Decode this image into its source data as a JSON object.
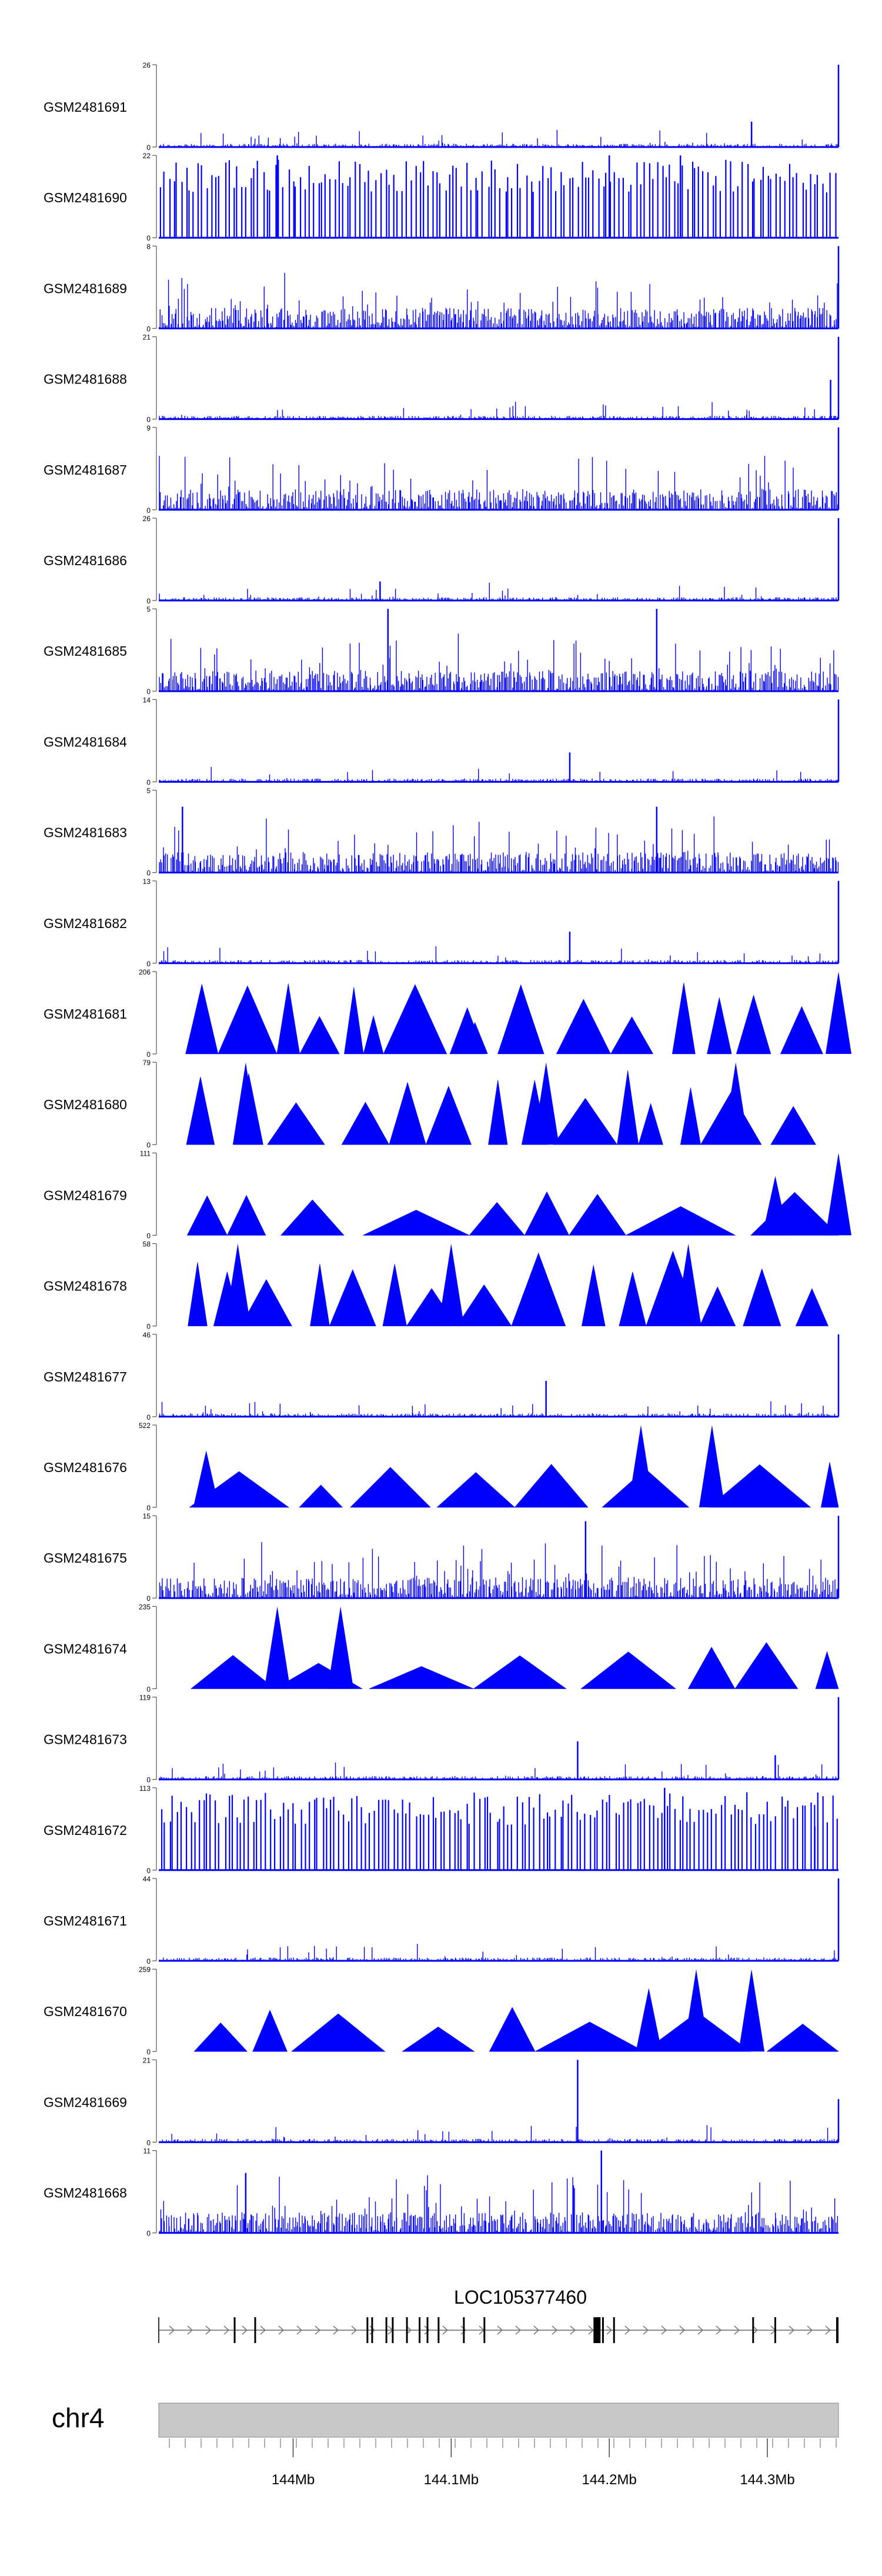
{
  "tracks_color": "#0000ff",
  "chart_data": [
    {
      "type": "area",
      "series": [
        {
          "name": "GSM2481691",
          "ylim": [
            0,
            26
          ],
          "profile": "sparse",
          "seed": 11,
          "peaks": [
            {
              "x": 144.29,
              "y": 8
            },
            {
              "x": 144.345,
              "y": 26
            }
          ]
        }
      ]
    },
    {
      "type": "area",
      "series": [
        {
          "name": "GSM2481690",
          "ylim": [
            0,
            22
          ],
          "profile": "spikes",
          "seed": 12,
          "peaks": [
            {
              "x": 143.99,
              "y": 22
            },
            {
              "x": 144.2,
              "y": 22
            },
            {
              "x": 144.245,
              "y": 22
            }
          ]
        }
      ]
    },
    {
      "type": "area",
      "series": [
        {
          "name": "GSM2481689",
          "ylim": [
            0,
            8
          ],
          "profile": "dense",
          "seed": 13,
          "peaks": [
            {
              "x": 144.345,
              "y": 8
            }
          ]
        }
      ]
    },
    {
      "type": "area",
      "series": [
        {
          "name": "GSM2481688",
          "ylim": [
            0,
            21
          ],
          "profile": "sparse",
          "seed": 14,
          "peaks": [
            {
              "x": 144.345,
              "y": 21
            },
            {
              "x": 144.34,
              "y": 10
            }
          ]
        }
      ]
    },
    {
      "type": "area",
      "series": [
        {
          "name": "GSM2481687",
          "ylim": [
            0,
            9
          ],
          "profile": "dense",
          "seed": 15,
          "peaks": [
            {
              "x": 144.345,
              "y": 9
            }
          ]
        }
      ]
    },
    {
      "type": "area",
      "series": [
        {
          "name": "GSM2481686",
          "ylim": [
            0,
            26
          ],
          "profile": "sparse",
          "seed": 16,
          "peaks": [
            {
              "x": 144.345,
              "y": 26
            },
            {
              "x": 144.055,
              "y": 6
            }
          ]
        }
      ]
    },
    {
      "type": "area",
      "series": [
        {
          "name": "GSM2481685",
          "ylim": [
            0,
            5
          ],
          "profile": "dense",
          "seed": 17,
          "peaks": [
            {
              "x": 144.06,
              "y": 5
            },
            {
              "x": 144.23,
              "y": 5
            }
          ]
        }
      ]
    },
    {
      "type": "area",
      "series": [
        {
          "name": "GSM2481684",
          "ylim": [
            0,
            14
          ],
          "profile": "sparse",
          "seed": 18,
          "peaks": [
            {
              "x": 144.345,
              "y": 14
            },
            {
              "x": 144.175,
              "y": 5
            }
          ]
        }
      ]
    },
    {
      "type": "area",
      "series": [
        {
          "name": "GSM2481683",
          "ylim": [
            0,
            5
          ],
          "profile": "dense",
          "seed": 19,
          "peaks": [
            {
              "x": 143.93,
              "y": 4
            },
            {
              "x": 144.23,
              "y": 4
            }
          ]
        }
      ]
    },
    {
      "type": "area",
      "series": [
        {
          "name": "GSM2481682",
          "ylim": [
            0,
            13
          ],
          "profile": "sparse",
          "seed": 20,
          "peaks": [
            {
              "x": 144.345,
              "y": 13
            },
            {
              "x": 144.175,
              "y": 5
            }
          ]
        }
      ]
    },
    {
      "type": "area",
      "series": [
        {
          "name": "GSM2481681",
          "ylim": [
            0,
            206
          ],
          "profile": "triangles",
          "seed": 21,
          "peaks": [
            {
              "x": 144.115,
              "y": 80
            },
            {
              "x": 144.345,
              "y": 206
            }
          ]
        }
      ]
    },
    {
      "type": "area",
      "series": [
        {
          "name": "GSM2481680",
          "ylim": [
            0,
            79
          ],
          "profile": "triangles",
          "seed": 22,
          "peaks": [
            {
              "x": 143.97,
              "y": 79
            },
            {
              "x": 144.16,
              "y": 79
            },
            {
              "x": 144.28,
              "y": 79
            }
          ]
        }
      ]
    },
    {
      "type": "area",
      "series": [
        {
          "name": "GSM2481679",
          "ylim": [
            0,
            111
          ],
          "profile": "broad",
          "seed": 23,
          "peaks": [
            {
              "x": 144.345,
              "y": 111
            },
            {
              "x": 144.305,
              "y": 80
            }
          ]
        }
      ]
    },
    {
      "type": "area",
      "series": [
        {
          "name": "GSM2481678",
          "ylim": [
            0,
            58
          ],
          "profile": "triangles",
          "seed": 24,
          "peaks": [
            {
              "x": 144.25,
              "y": 58
            },
            {
              "x": 143.965,
              "y": 58
            },
            {
              "x": 144.1,
              "y": 58
            }
          ]
        }
      ]
    },
    {
      "type": "area",
      "series": [
        {
          "name": "GSM2481677",
          "ylim": [
            0,
            46
          ],
          "profile": "sparse",
          "seed": 25,
          "peaks": [
            {
              "x": 144.345,
              "y": 46
            },
            {
              "x": 144.16,
              "y": 20
            }
          ]
        }
      ]
    },
    {
      "type": "area",
      "series": [
        {
          "name": "GSM2481676",
          "ylim": [
            0,
            522
          ],
          "profile": "broad",
          "seed": 26,
          "peaks": [
            {
              "x": 144.22,
              "y": 522
            },
            {
              "x": 144.265,
              "y": 522
            },
            {
              "x": 143.945,
              "y": 360
            }
          ]
        }
      ]
    },
    {
      "type": "area",
      "series": [
        {
          "name": "GSM2481675",
          "ylim": [
            0,
            15
          ],
          "profile": "dense",
          "seed": 27,
          "peaks": [
            {
              "x": 144.345,
              "y": 15
            },
            {
              "x": 144.185,
              "y": 14
            }
          ]
        }
      ]
    },
    {
      "type": "area",
      "series": [
        {
          "name": "GSM2481674",
          "ylim": [
            0,
            235
          ],
          "profile": "broad",
          "seed": 28,
          "peaks": [
            {
              "x": 143.99,
              "y": 235
            },
            {
              "x": 144.03,
              "y": 235
            }
          ]
        }
      ]
    },
    {
      "type": "area",
      "series": [
        {
          "name": "GSM2481673",
          "ylim": [
            0,
            119
          ],
          "profile": "sparse",
          "seed": 29,
          "peaks": [
            {
              "x": 144.345,
              "y": 119
            },
            {
              "x": 144.18,
              "y": 55
            },
            {
              "x": 144.305,
              "y": 35
            }
          ]
        }
      ]
    },
    {
      "type": "area",
      "series": [
        {
          "name": "GSM2481672",
          "ylim": [
            0,
            113
          ],
          "profile": "spikes",
          "seed": 30,
          "peaks": [
            {
              "x": 144.235,
              "y": 113
            },
            {
              "x": 144.33,
              "y": 60
            }
          ]
        }
      ]
    },
    {
      "type": "area",
      "series": [
        {
          "name": "GSM2481671",
          "ylim": [
            0,
            44
          ],
          "profile": "sparse",
          "seed": 31,
          "peaks": [
            {
              "x": 144.345,
              "y": 44
            }
          ]
        }
      ]
    },
    {
      "type": "area",
      "series": [
        {
          "name": "GSM2481670",
          "ylim": [
            0,
            259
          ],
          "profile": "broad",
          "seed": 32,
          "peaks": [
            {
              "x": 144.255,
              "y": 259
            },
            {
              "x": 144.29,
              "y": 259
            },
            {
              "x": 144.225,
              "y": 200
            }
          ]
        }
      ]
    },
    {
      "type": "area",
      "series": [
        {
          "name": "GSM2481669",
          "ylim": [
            0,
            21
          ],
          "profile": "sparse",
          "seed": 33,
          "peaks": [
            {
              "x": 144.18,
              "y": 21
            },
            {
              "x": 144.345,
              "y": 11
            }
          ]
        }
      ]
    },
    {
      "type": "area",
      "series": [
        {
          "name": "GSM2481668",
          "ylim": [
            0,
            11
          ],
          "profile": "dense",
          "seed": 34,
          "peaks": [
            {
              "x": 144.195,
              "y": 11
            },
            {
              "x": 143.97,
              "y": 8
            }
          ]
        }
      ]
    }
  ],
  "gene": {
    "label": "LOC105377460",
    "exons_mb": [
      143.963,
      143.976,
      144.047,
      144.05,
      144.059,
      144.063,
      144.072,
      144.08,
      144.085,
      144.092,
      144.108,
      144.121,
      144.193,
      144.196,
      144.203,
      144.291,
      144.305
    ]
  },
  "axis": {
    "chromosome": "chr4",
    "xlim": [
      143.915,
      144.345
    ],
    "ticks": [
      {
        "value": 144.0,
        "label": "144Mb"
      },
      {
        "value": 144.1,
        "label": "144.1Mb"
      },
      {
        "value": 144.2,
        "label": "144.2Mb"
      },
      {
        "value": 144.3,
        "label": "144.3Mb"
      }
    ]
  }
}
